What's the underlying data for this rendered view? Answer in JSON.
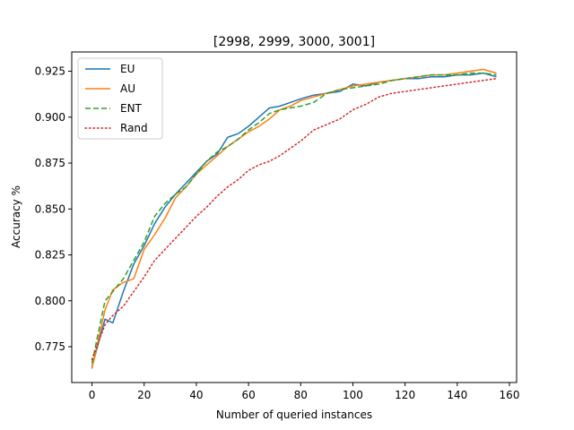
{
  "chart_data": {
    "type": "line",
    "title": "[2998, 2999, 3000, 3001]",
    "xlabel": "Number of queried instances",
    "ylabel": "Accuracy %",
    "xlim": [
      -7.75,
      162.75
    ],
    "ylim": [
      0.7555,
      0.9355
    ],
    "xticks": [
      0,
      20,
      40,
      60,
      80,
      100,
      120,
      140,
      160
    ],
    "yticks": [
      0.775,
      0.8,
      0.825,
      0.85,
      0.875,
      0.9,
      0.925
    ],
    "ytick_labels": [
      "0.775",
      "0.800",
      "0.825",
      "0.850",
      "0.875",
      "0.900",
      "0.925"
    ],
    "grid": false,
    "legend_position": "top-left",
    "series": [
      {
        "name": "EU",
        "color": "#1f77b4",
        "dash": "solid",
        "x": [
          0,
          5,
          8,
          12,
          16,
          20,
          24,
          28,
          32,
          36,
          40,
          44,
          48,
          52,
          56,
          60,
          64,
          68,
          72,
          76,
          80,
          85,
          90,
          95,
          100,
          105,
          110,
          115,
          120,
          125,
          130,
          135,
          140,
          145,
          150,
          155
        ],
        "y": [
          0.764,
          0.79,
          0.788,
          0.805,
          0.82,
          0.83,
          0.842,
          0.851,
          0.858,
          0.864,
          0.87,
          0.876,
          0.88,
          0.889,
          0.891,
          0.895,
          0.9,
          0.905,
          0.906,
          0.908,
          0.91,
          0.912,
          0.913,
          0.914,
          0.918,
          0.917,
          0.919,
          0.92,
          0.921,
          0.921,
          0.922,
          0.922,
          0.923,
          0.923,
          0.924,
          0.922
        ]
      },
      {
        "name": "AU",
        "color": "#ff7f0e",
        "dash": "solid",
        "x": [
          0,
          5,
          8,
          12,
          16,
          20,
          24,
          28,
          32,
          36,
          40,
          44,
          48,
          52,
          56,
          60,
          64,
          68,
          72,
          76,
          80,
          85,
          90,
          95,
          100,
          105,
          110,
          115,
          120,
          125,
          130,
          135,
          140,
          145,
          150,
          155
        ],
        "y": [
          0.763,
          0.795,
          0.806,
          0.81,
          0.812,
          0.828,
          0.836,
          0.845,
          0.856,
          0.862,
          0.869,
          0.874,
          0.879,
          0.884,
          0.888,
          0.892,
          0.895,
          0.899,
          0.904,
          0.906,
          0.909,
          0.911,
          0.913,
          0.915,
          0.917,
          0.918,
          0.919,
          0.92,
          0.921,
          0.922,
          0.923,
          0.923,
          0.924,
          0.925,
          0.926,
          0.924
        ]
      },
      {
        "name": "ENT",
        "color": "#2ca02c",
        "dash": "dashed",
        "x": [
          0,
          5,
          8,
          12,
          16,
          20,
          24,
          28,
          32,
          36,
          40,
          44,
          48,
          52,
          56,
          60,
          64,
          68,
          72,
          76,
          80,
          85,
          90,
          95,
          100,
          105,
          110,
          115,
          120,
          125,
          130,
          135,
          140,
          145,
          150,
          155
        ],
        "y": [
          0.766,
          0.8,
          0.805,
          0.812,
          0.822,
          0.832,
          0.846,
          0.853,
          0.858,
          0.862,
          0.869,
          0.876,
          0.881,
          0.884,
          0.888,
          0.893,
          0.897,
          0.902,
          0.904,
          0.905,
          0.906,
          0.908,
          0.913,
          0.915,
          0.916,
          0.917,
          0.918,
          0.92,
          0.921,
          0.922,
          0.923,
          0.923,
          0.923,
          0.924,
          0.924,
          0.923
        ]
      },
      {
        "name": "Rand",
        "color": "#d62728",
        "dash": "dotted",
        "x": [
          0,
          5,
          8,
          12,
          16,
          20,
          24,
          28,
          32,
          36,
          40,
          44,
          48,
          52,
          56,
          60,
          64,
          68,
          72,
          76,
          80,
          85,
          90,
          95,
          100,
          105,
          110,
          115,
          120,
          125,
          130,
          135,
          140,
          145,
          150,
          155
        ],
        "y": [
          0.768,
          0.787,
          0.792,
          0.797,
          0.805,
          0.813,
          0.822,
          0.828,
          0.834,
          0.84,
          0.846,
          0.851,
          0.857,
          0.862,
          0.866,
          0.871,
          0.874,
          0.876,
          0.879,
          0.883,
          0.887,
          0.893,
          0.896,
          0.899,
          0.904,
          0.907,
          0.911,
          0.913,
          0.914,
          0.915,
          0.916,
          0.917,
          0.918,
          0.919,
          0.92,
          0.921
        ]
      }
    ]
  }
}
